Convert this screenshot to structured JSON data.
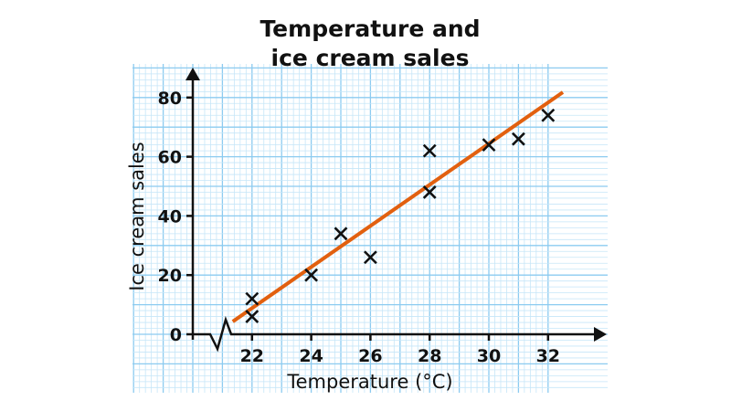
{
  "chart_data": {
    "type": "scatter",
    "title": [
      "Temperature and",
      "ice cream sales"
    ],
    "xlabel": "Temperature (°C)",
    "ylabel": "Ice cream sales",
    "xlim": [
      20,
      33
    ],
    "ylim": [
      0,
      85
    ],
    "x_axis_break": true,
    "xticks": [
      22,
      24,
      26,
      28,
      30,
      32
    ],
    "yticks": [
      0,
      20,
      40,
      60,
      80
    ],
    "grid": true,
    "colors": {
      "grid_major": "#8ccbf0",
      "grid_minor": "#c6e6f8",
      "line": "#e2600f",
      "points": "#111111"
    },
    "points": [
      {
        "x": 22,
        "y": 12
      },
      {
        "x": 22,
        "y": 6
      },
      {
        "x": 24,
        "y": 20
      },
      {
        "x": 25,
        "y": 34
      },
      {
        "x": 26,
        "y": 26
      },
      {
        "x": 28,
        "y": 62
      },
      {
        "x": 28,
        "y": 48
      },
      {
        "x": 30,
        "y": 64
      },
      {
        "x": 31,
        "y": 66
      },
      {
        "x": 32,
        "y": 74
      }
    ],
    "line_of_best_fit": {
      "x": [
        21.35,
        32.5
      ],
      "y": [
        4.3,
        81.8
      ]
    }
  }
}
